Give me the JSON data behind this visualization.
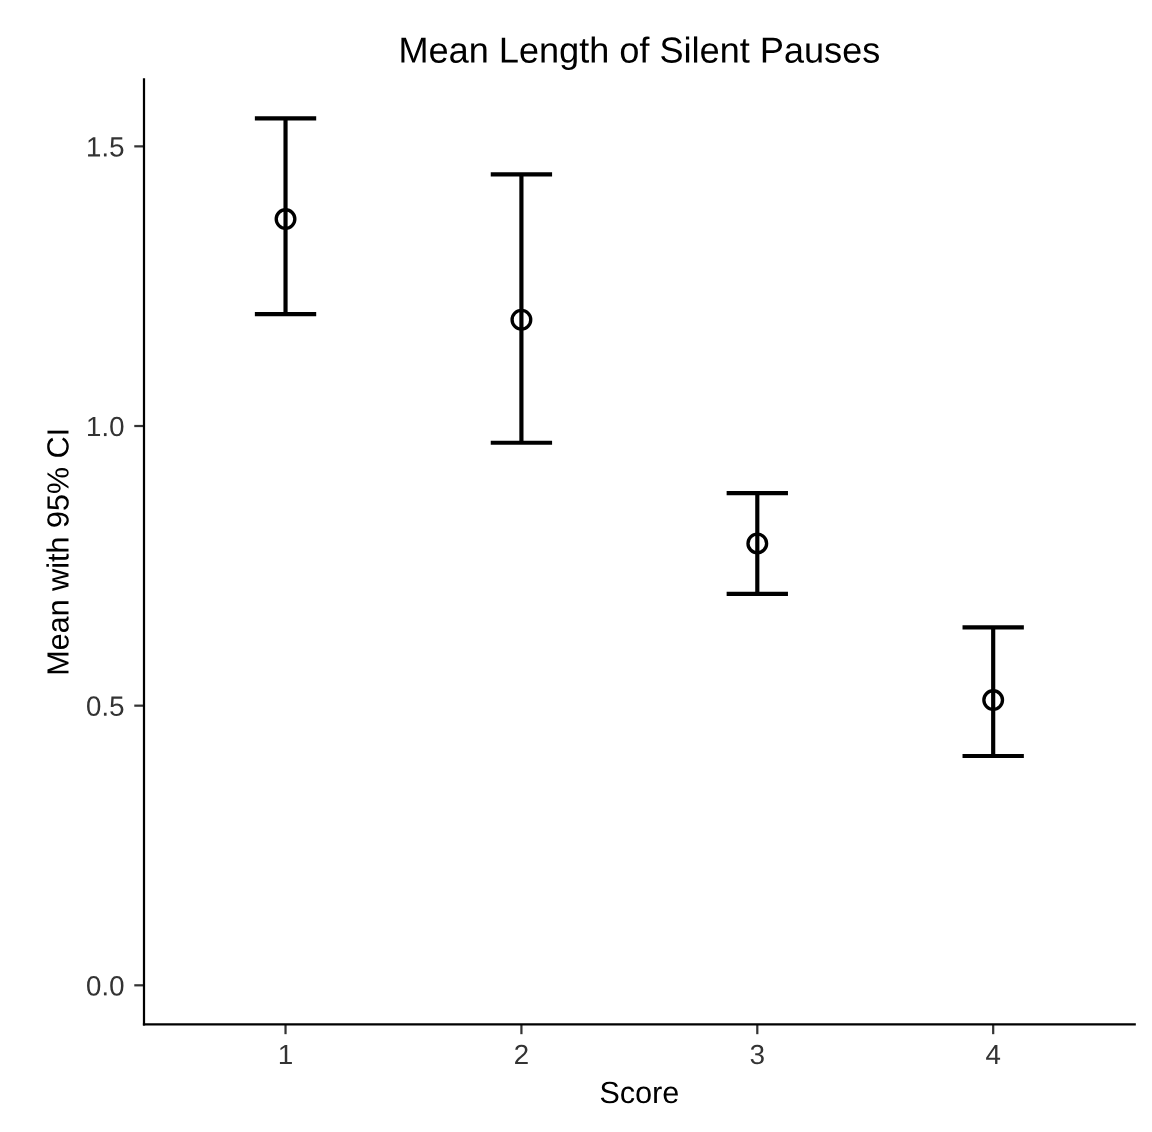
{
  "chart_data": {
    "type": "scatter",
    "title": "Mean Length of Silent Pauses",
    "xlabel": "Score",
    "ylabel": "Mean with 95% CI",
    "categories": [
      "1",
      "2",
      "3",
      "4"
    ],
    "values": [
      1.37,
      1.19,
      0.79,
      0.51
    ],
    "errors": [
      [
        1.2,
        1.55
      ],
      [
        0.97,
        1.45
      ],
      [
        0.7,
        0.88
      ],
      [
        0.41,
        0.64
      ]
    ],
    "color": "#000000",
    "marker": "circle",
    "ylim": [
      -0.07,
      1.62
    ],
    "yticks": [
      {
        "value": 0,
        "label": "0.0"
      },
      {
        "value": 0.5,
        "label": "0.5"
      },
      {
        "value": 1,
        "label": "1.0"
      },
      {
        "value": 1.5,
        "label": "1.5"
      }
    ],
    "grid": false
  }
}
